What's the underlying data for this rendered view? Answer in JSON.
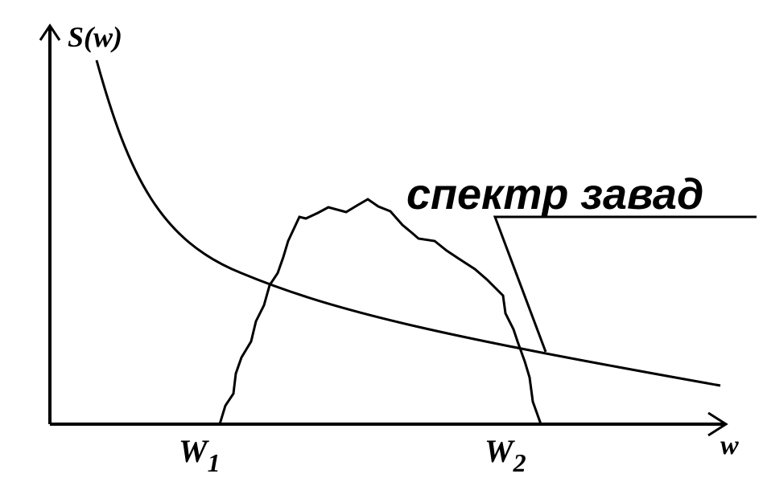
{
  "axes": {
    "y_label": "S(w)",
    "x_label": "w"
  },
  "markers": [
    {
      "label": "W",
      "subscript": "1"
    },
    {
      "label": "W",
      "subscript": "2"
    }
  ],
  "annotation": "спектр завад"
}
